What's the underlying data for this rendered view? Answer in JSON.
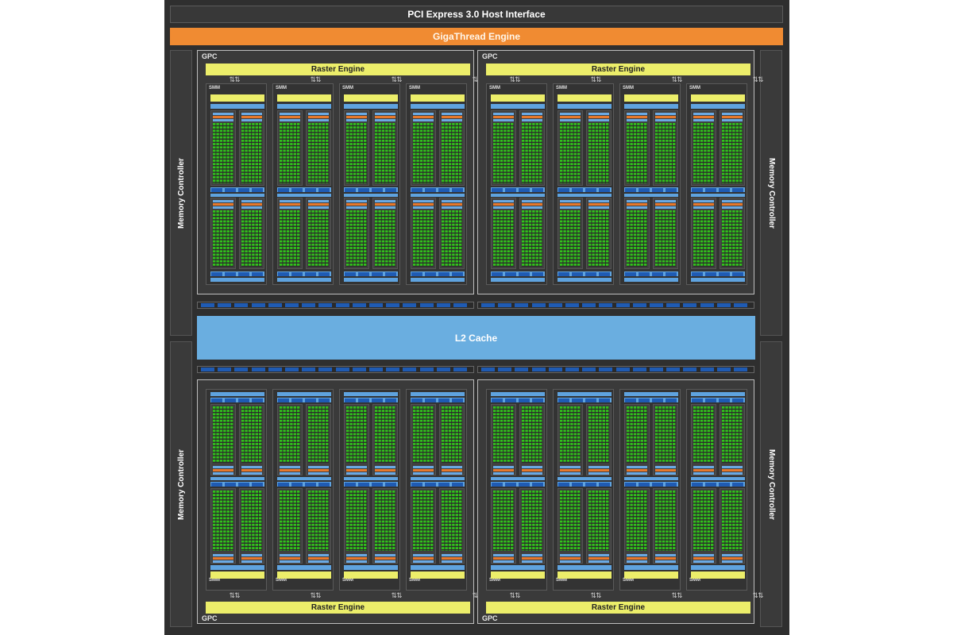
{
  "header": {
    "host_interface": "PCI Express 3.0 Host Interface",
    "thread_engine": "GigaThread Engine"
  },
  "memory_controller_label": "Memory Controller",
  "l2_cache": "L2 Cache",
  "gpc": {
    "label": "GPC",
    "raster_engine": "Raster Engine",
    "smm_label": "SMM",
    "smm_per_gpc": 4
  },
  "gpc_count": 4,
  "memory_controller_count": 4,
  "colors": {
    "chip_background": "#2f2f2f",
    "giga_thread": "#f08b32",
    "raster_engine": "#ecee6a",
    "cuda_cores": "#31c11c",
    "l1_blue": "#1f5bb3",
    "l2_cache": "#6aaee0",
    "dispatch_orange": "#e7782b",
    "frame": "#bdbdbd"
  }
}
